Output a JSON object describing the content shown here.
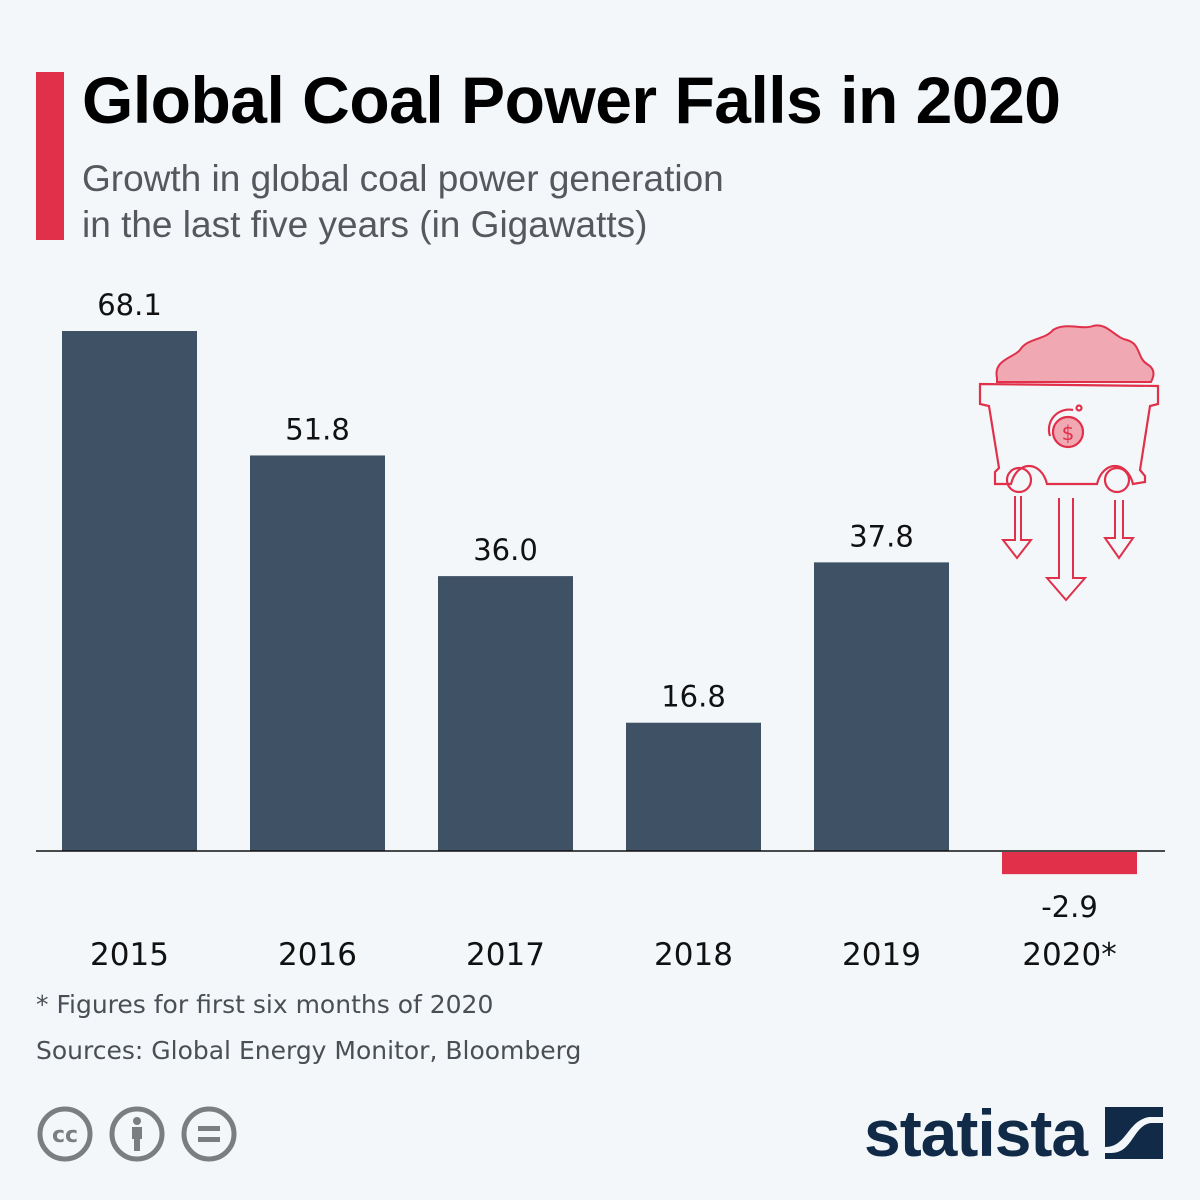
{
  "header": {
    "title": "Global Coal Power Falls in 2020",
    "subtitle_line1": "Growth in global coal power generation",
    "subtitle_line2": "in the last five years (in Gigawatts)"
  },
  "colors": {
    "accent": "#e0304a",
    "bar_positive": "#3f5164",
    "bar_negative": "#e0304a",
    "background": "#f3f7fa",
    "brand": "#102a47",
    "icon_light": "#f0a8b2"
  },
  "chart_data": {
    "type": "bar",
    "title": "Global Coal Power Falls in 2020",
    "subtitle": "Growth in global coal power generation in the last five years (in Gigawatts)",
    "categories": [
      "2015",
      "2016",
      "2017",
      "2018",
      "2019",
      "2020*"
    ],
    "values": [
      68.1,
      51.8,
      36.0,
      16.8,
      37.8,
      -2.9
    ],
    "value_labels": [
      "68.1",
      "51.8",
      "36.0",
      "16.8",
      "37.8",
      "-2.9"
    ],
    "xlabel": "",
    "ylabel": "Gigawatts",
    "ylim": [
      -2.9,
      68.1
    ],
    "grid": false,
    "legend": "none"
  },
  "footer": {
    "note": "* Figures for first six months of 2020",
    "sources": "Sources: Global Energy Monitor, Bloomberg",
    "license_icons": [
      "cc-icon",
      "attribution-icon",
      "no-derivatives-icon"
    ],
    "brand": "statista"
  }
}
